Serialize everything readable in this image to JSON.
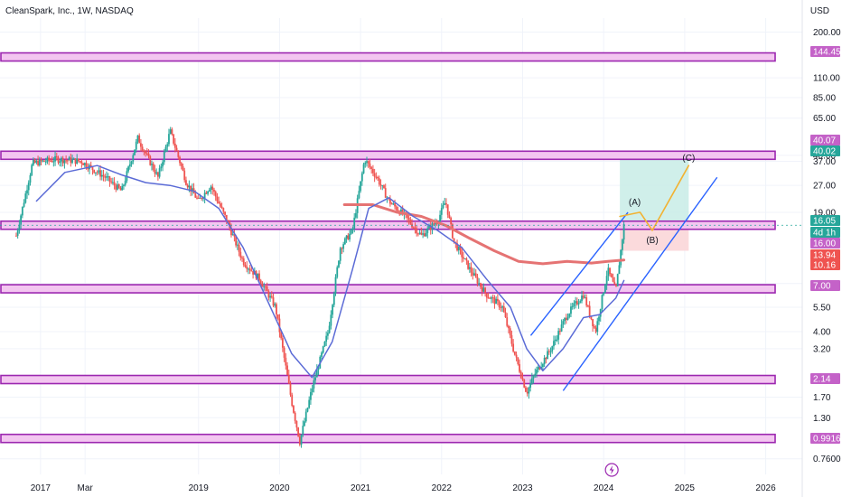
{
  "header": {
    "symbol_title": "CleanSpark, Inc., 1W, NASDAQ",
    "currency": "USD"
  },
  "colors": {
    "up": "#26a69a",
    "down": "#ef5350",
    "zone_fill": "#f3c6f0",
    "zone_border": "#9c27b0",
    "ma_fast": "#5b6bd6",
    "ma_slow": "#e57373",
    "channel": "#2962ff",
    "wave": "#f2b232",
    "target_zone": "#c8ece6",
    "stop_zone": "#fad4d6",
    "grid": "#f0f3fa"
  },
  "chart_data": {
    "type": "candlestick",
    "y_scale": "log",
    "ylim": [
      0.62,
      240
    ],
    "y_ticks": [
      "200.00",
      "110.00",
      "85.00",
      "65.00",
      "40.00",
      "37.00",
      "27.00",
      "19.00",
      "7.50",
      "5.50",
      "4.00",
      "3.20",
      "1.70",
      "1.30",
      "0.7600"
    ],
    "x_ticks": [
      "2017",
      "Mar",
      "2019",
      "2020",
      "2021",
      "2022",
      "2023",
      "2024",
      "2025",
      "2026"
    ],
    "horizontal_zones": [
      144.45,
      40.02,
      16.05,
      7.0,
      2.14,
      0.9916
    ],
    "price_tags": [
      {
        "label": "144.45",
        "kind": "zone"
      },
      {
        "label": "40.07",
        "kind": "zone"
      },
      {
        "label": "40.02",
        "kind": "up"
      },
      {
        "label": "16.05",
        "kind": "up"
      },
      {
        "label": "4d 1h",
        "kind": "up"
      },
      {
        "label": "16.00",
        "kind": "zone"
      },
      {
        "label": "13.94",
        "kind": "down"
      },
      {
        "label": "10.16",
        "kind": "down"
      },
      {
        "label": "7.00",
        "kind": "zone"
      },
      {
        "label": "2.14",
        "kind": "zone"
      },
      {
        "label": "0.9916",
        "kind": "zone"
      }
    ],
    "wave_labels": [
      "(A)",
      "(B)",
      "(C)"
    ],
    "candles_note": "weekly candles approximated from visual trend",
    "trend_path": [
      [
        2016.7,
        14
      ],
      [
        2016.9,
        36
      ],
      [
        2017.2,
        38
      ],
      [
        2017.5,
        37
      ],
      [
        2017.8,
        30
      ],
      [
        2018.0,
        25
      ],
      [
        2018.2,
        50
      ],
      [
        2018.45,
        30
      ],
      [
        2018.6,
        55
      ],
      [
        2018.8,
        28
      ],
      [
        2018.95,
        22
      ],
      [
        2019.1,
        27
      ],
      [
        2019.3,
        17
      ],
      [
        2019.5,
        10
      ],
      [
        2019.7,
        8
      ],
      [
        2019.9,
        5.5
      ],
      [
        2020.1,
        1.6
      ],
      [
        2020.2,
        0.95
      ],
      [
        2020.35,
        1.9
      ],
      [
        2020.55,
        4
      ],
      [
        2020.7,
        12
      ],
      [
        2020.85,
        15
      ],
      [
        2021.0,
        38
      ],
      [
        2021.15,
        30
      ],
      [
        2021.3,
        22
      ],
      [
        2021.5,
        18
      ],
      [
        2021.7,
        14
      ],
      [
        2021.9,
        17
      ],
      [
        2022.0,
        22
      ],
      [
        2022.1,
        13
      ],
      [
        2022.3,
        9
      ],
      [
        2022.5,
        6.5
      ],
      [
        2022.7,
        5.5
      ],
      [
        2022.85,
        3
      ],
      [
        2023.0,
        1.8
      ],
      [
        2023.1,
        2.3
      ],
      [
        2023.3,
        3.2
      ],
      [
        2023.5,
        5
      ],
      [
        2023.7,
        6.5
      ],
      [
        2023.85,
        4
      ],
      [
        2024.0,
        9
      ],
      [
        2024.1,
        6.8
      ],
      [
        2024.2,
        16
      ]
    ],
    "ma_fast_path": [
      [
        2016.95,
        22
      ],
      [
        2017.3,
        32
      ],
      [
        2017.7,
        35
      ],
      [
        2018.0,
        31
      ],
      [
        2018.3,
        28
      ],
      [
        2018.6,
        27
      ],
      [
        2018.9,
        25
      ],
      [
        2019.2,
        20
      ],
      [
        2019.5,
        12
      ],
      [
        2019.8,
        6
      ],
      [
        2020.1,
        3
      ],
      [
        2020.35,
        2.2
      ],
      [
        2020.6,
        3.5
      ],
      [
        2020.85,
        9
      ],
      [
        2021.05,
        20
      ],
      [
        2021.3,
        23
      ],
      [
        2021.6,
        18
      ],
      [
        2021.9,
        15
      ],
      [
        2022.2,
        12
      ],
      [
        2022.5,
        8
      ],
      [
        2022.8,
        5.5
      ],
      [
        2023.0,
        3.2
      ],
      [
        2023.2,
        2.4
      ],
      [
        2023.45,
        3.2
      ],
      [
        2023.7,
        4.8
      ],
      [
        2023.9,
        5
      ],
      [
        2024.1,
        6.2
      ],
      [
        2024.2,
        7.8
      ]
    ],
    "ma_slow_path": [
      [
        2020.75,
        21
      ],
      [
        2021.1,
        21
      ],
      [
        2021.4,
        19
      ],
      [
        2021.7,
        18
      ],
      [
        2022.0,
        16
      ],
      [
        2022.3,
        13.5
      ],
      [
        2022.6,
        11.5
      ],
      [
        2022.9,
        10
      ],
      [
        2023.2,
        9.7
      ],
      [
        2023.5,
        10
      ],
      [
        2023.8,
        9.8
      ],
      [
        2024.0,
        10
      ],
      [
        2024.2,
        10.2
      ]
    ],
    "channel_lines": [
      [
        [
          2023.05,
          3.8
        ],
        [
          2024.25,
          19
        ]
      ],
      [
        [
          2023.45,
          1.85
        ],
        [
          2025.35,
          30
        ]
      ]
    ],
    "wave_path": [
      [
        2024.15,
        18
      ],
      [
        2024.4,
        19
      ],
      [
        2024.55,
        15
      ],
      [
        2025.0,
        35
      ]
    ],
    "target_box": [
      [
        2024.15,
        40.0
      ],
      [
        2025.0,
        16.05
      ]
    ],
    "stop_box": [
      [
        2024.15,
        16.05
      ],
      [
        2025.0,
        11.5
      ]
    ]
  }
}
